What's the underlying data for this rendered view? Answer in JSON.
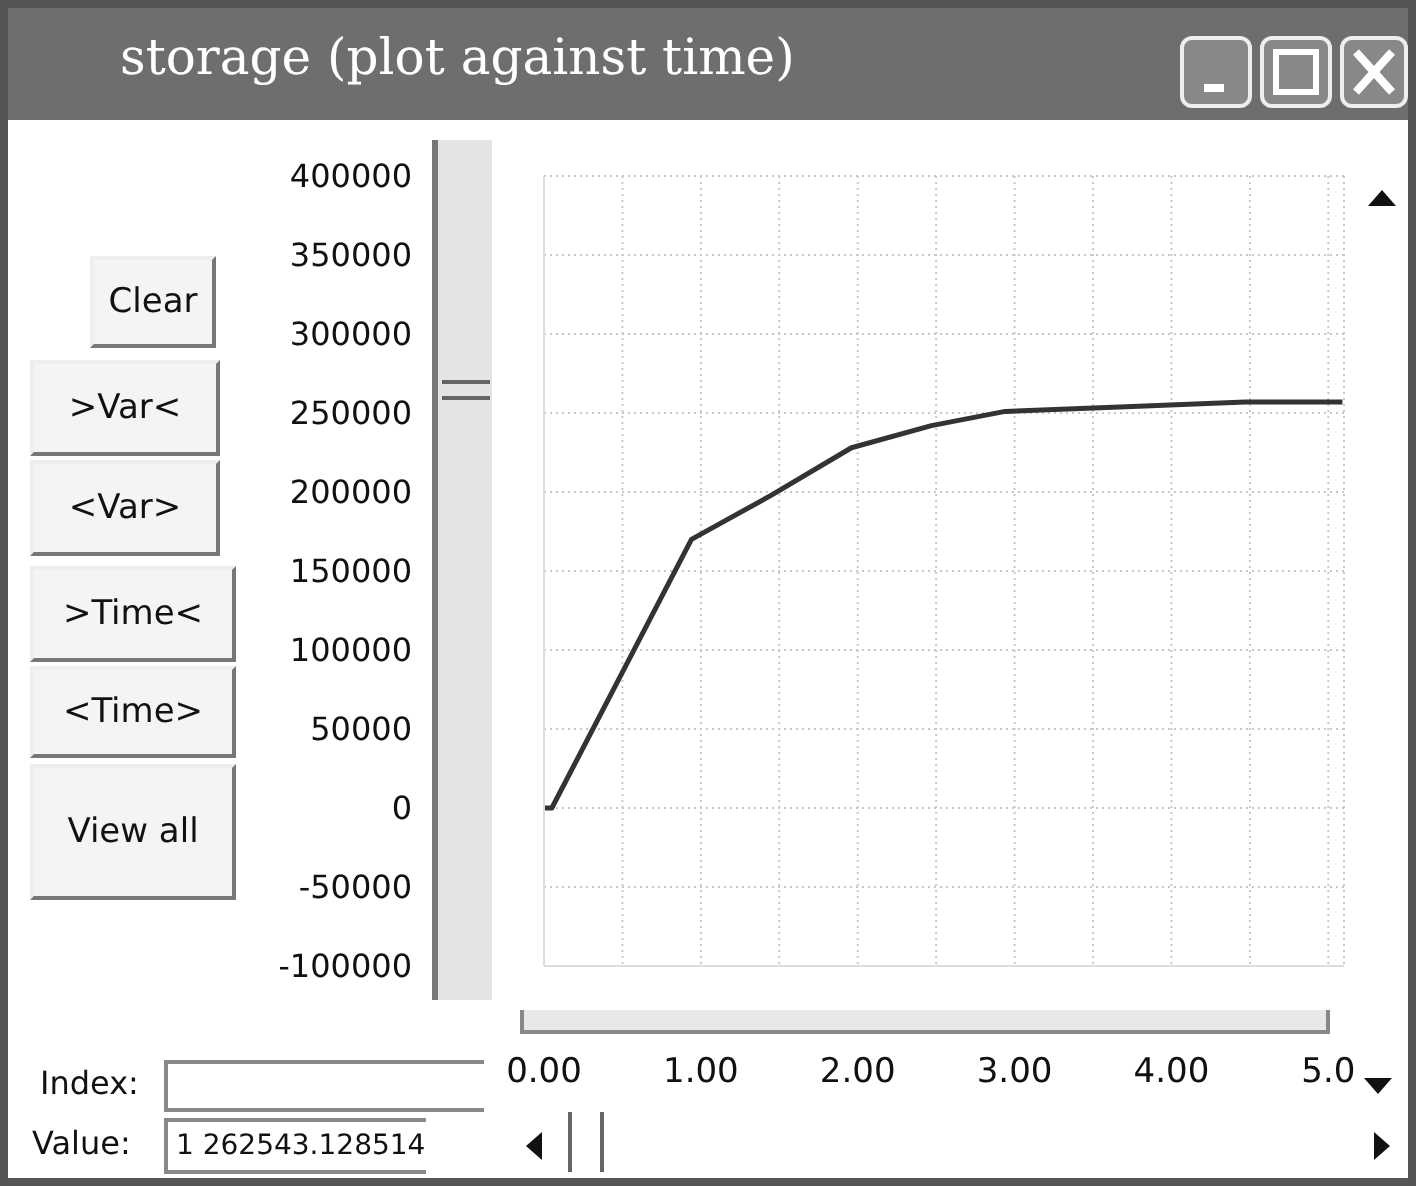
{
  "chart_data": {
    "type": "line",
    "title": "storage (plot against time)",
    "x": [
      0,
      0.05,
      0.94,
      1.45,
      1.96,
      2.47,
      2.94,
      3.71,
      4.47,
      5.09
    ],
    "values": [
      0,
      0,
      170000,
      198000,
      228000,
      242000,
      251000,
      254000,
      257000,
      257000
    ],
    "color": "#333333",
    "marker": "none",
    "grid": true,
    "xlim": [
      0,
      5.1
    ],
    "xticks": [
      {
        "value": 0,
        "label": "0.00"
      },
      {
        "value": 0.5,
        "label": null
      },
      {
        "value": 1,
        "label": "1.00"
      },
      {
        "value": 1.5,
        "label": null
      },
      {
        "value": 2,
        "label": "2.00"
      },
      {
        "value": 2.5,
        "label": null
      },
      {
        "value": 3,
        "label": "3.00"
      },
      {
        "value": 3.5,
        "label": null
      },
      {
        "value": 4,
        "label": "4.00"
      },
      {
        "value": 4.5,
        "label": null
      },
      {
        "value": 5,
        "label": "5.0"
      }
    ],
    "ylim": [
      -100000,
      400000
    ],
    "yticks": [
      -100000,
      -50000,
      0,
      50000,
      100000,
      150000,
      200000,
      250000,
      300000,
      350000,
      400000
    ],
    "annotations": [
      "Clear",
      ">Var<",
      "<Var>",
      ">Time<",
      "<Time>",
      "View all",
      "Index:",
      "Value:",
      "1 262543.128514"
    ]
  }
}
